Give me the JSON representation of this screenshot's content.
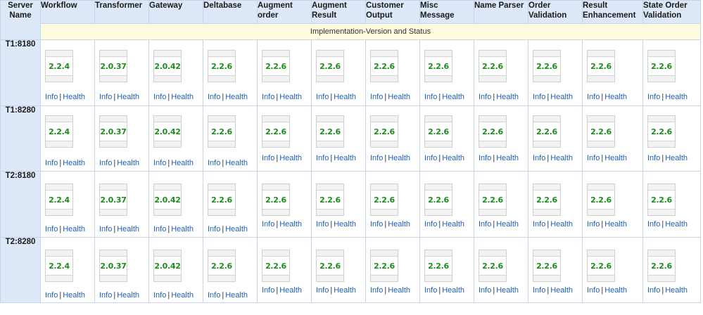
{
  "header": {
    "server_name": "Server Name",
    "columns": [
      "Workflow",
      "Transformer",
      "Gateway",
      "Deltabase",
      "Augment order",
      "Augment Result",
      "Customer Output",
      "Misc Message",
      "Name Parser",
      "Order Validation",
      "Result Enhancement",
      "State Order Validation"
    ],
    "subheader": "Implementation-Version and Status"
  },
  "links": {
    "info": "Info",
    "separator": "|",
    "health": "Health"
  },
  "rows": [
    {
      "server": "T1:8180",
      "versions": [
        "2.2.4",
        "2.0.37",
        "2.0.42",
        "2.2.6",
        "2.2.6",
        "2.2.6",
        "2.2.6",
        "2.2.6",
        "2.2.6",
        "2.2.6",
        "2.2.6",
        "2.2.6"
      ]
    },
    {
      "server": "T1:8280",
      "versions": [
        "2.2.4",
        "2.0.37",
        "2.0.42",
        "2.2.6",
        "2.2.6",
        "2.2.6",
        "2.2.6",
        "2.2.6",
        "2.2.6",
        "2.2.6",
        "2.2.6",
        "2.2.6"
      ]
    },
    {
      "server": "T2:8180",
      "versions": [
        "2.2.4",
        "2.0.37",
        "2.0.42",
        "2.2.6",
        "2.2.6",
        "2.2.6",
        "2.2.6",
        "2.2.6",
        "2.2.6",
        "2.2.6",
        "2.2.6",
        "2.2.6"
      ]
    },
    {
      "server": "T2:8280",
      "versions": [
        "2.2.4",
        "2.0.37",
        "2.0.42",
        "2.2.6",
        "2.2.6",
        "2.2.6",
        "2.2.6",
        "2.2.6",
        "2.2.6",
        "2.2.6",
        "2.2.6",
        "2.2.6"
      ]
    }
  ],
  "colors": {
    "header_bg": "#dde8f8",
    "subheader_bg": "#fffbdf",
    "version_text": "#1c8c1c",
    "link": "#1f5fb5"
  }
}
